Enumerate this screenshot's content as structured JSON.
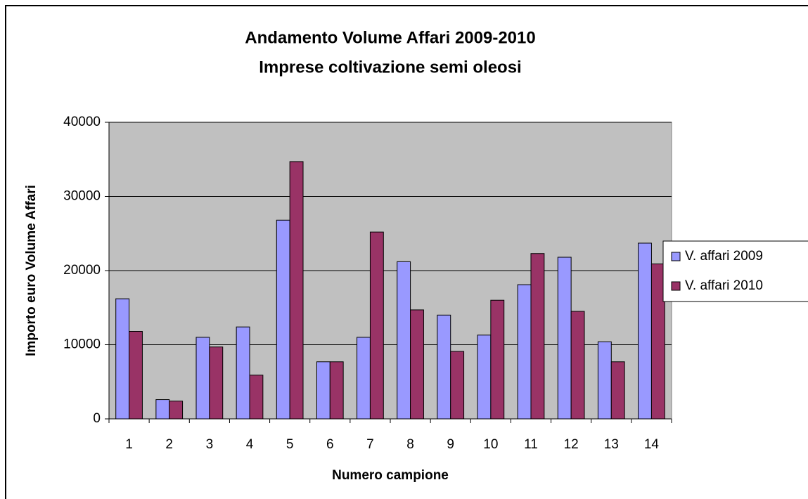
{
  "chart_data": {
    "type": "bar",
    "title": "Andamento Volume Affari 2009-2010",
    "subtitle": "Imprese coltivazione semi oleosi",
    "x_label": "Numero campione",
    "y_label": "Importo euro Volume Affari",
    "categories": [
      "1",
      "2",
      "3",
      "4",
      "5",
      "6",
      "7",
      "8",
      "9",
      "10",
      "11",
      "12",
      "13",
      "14"
    ],
    "series": [
      {
        "name": "V. affari 2009",
        "color": "#9999ff",
        "values": [
          16200,
          2600,
          11000,
          12400,
          26800,
          7700,
          11000,
          21200,
          14000,
          11300,
          18100,
          21800,
          10400,
          23700
        ]
      },
      {
        "name": "V. affari 2010",
        "color": "#993366",
        "values": [
          11800,
          2400,
          9700,
          5900,
          34700,
          7700,
          25200,
          14700,
          9100,
          16000,
          22300,
          14500,
          7700,
          20900
        ]
      }
    ],
    "ylim": [
      0,
      40000
    ],
    "yticks": [
      0,
      10000,
      20000,
      30000,
      40000
    ],
    "grid": true,
    "legend": "right"
  }
}
